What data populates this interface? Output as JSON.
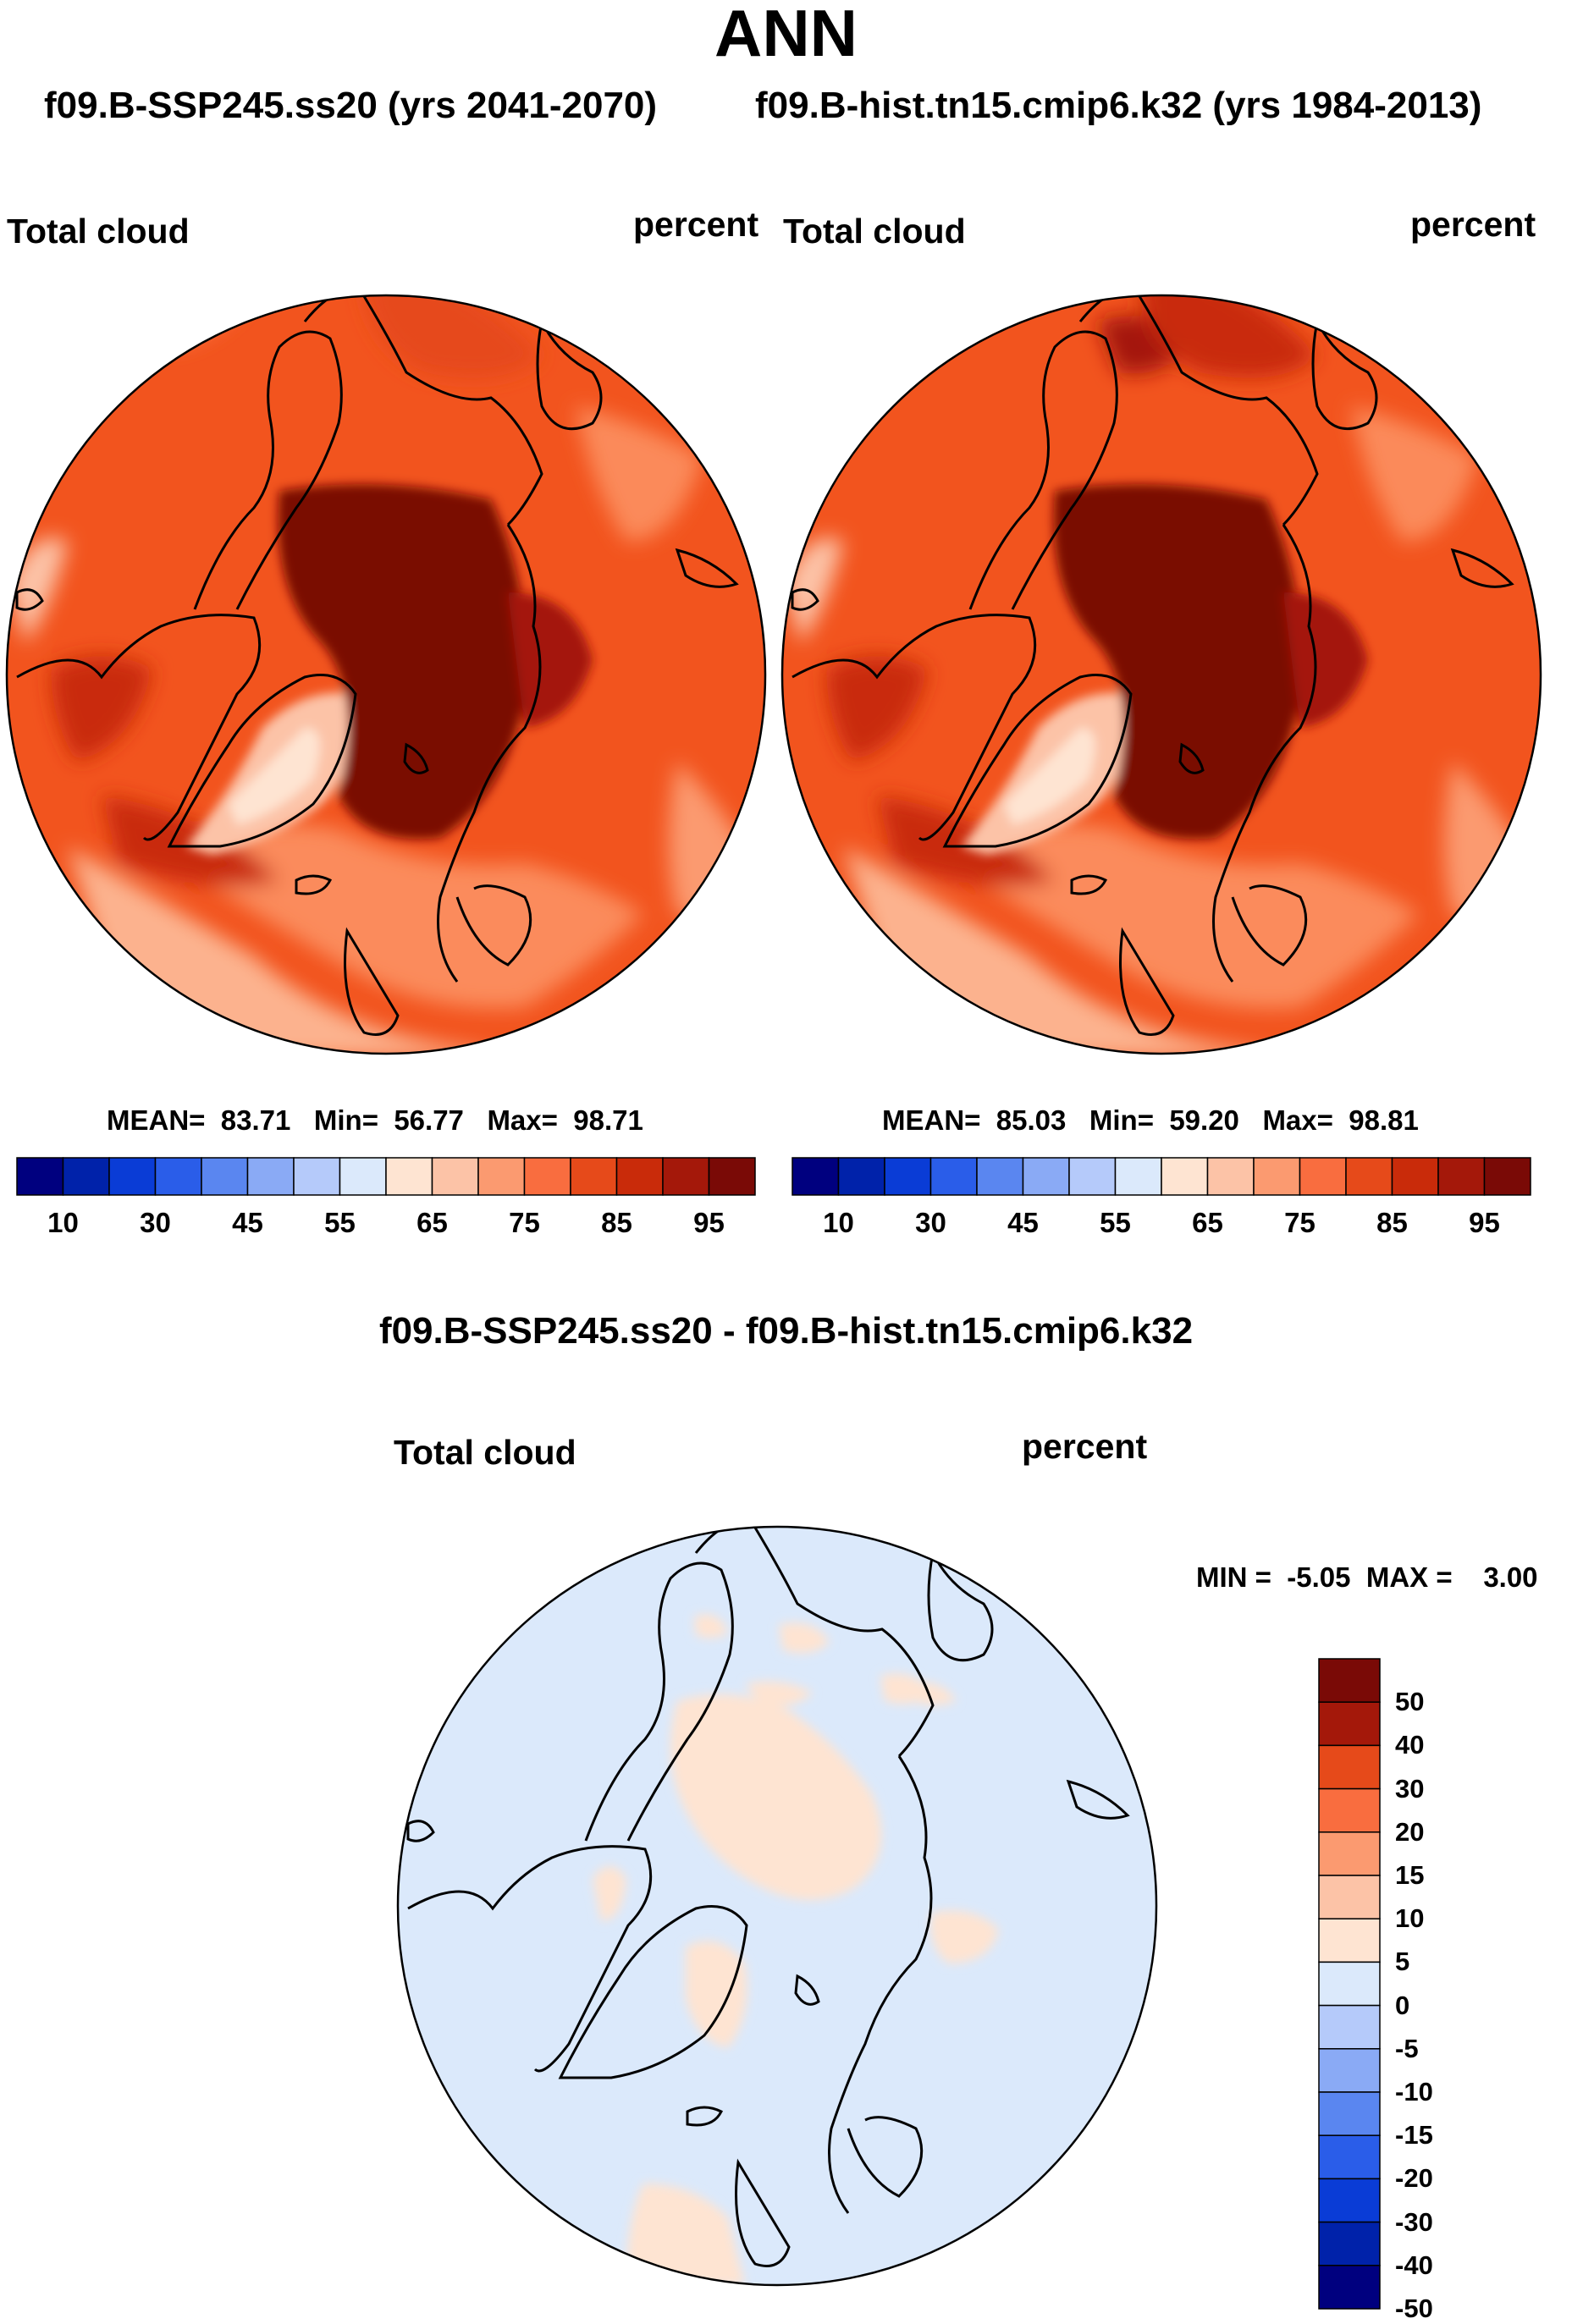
{
  "figure": {
    "title": "ANN",
    "subtitle_left": "f09.B-SSP245.ss20 (yrs 2041-2070)",
    "subtitle_right": "f09.B-hist.tn15.cmip6.k32 (yrs 1984-2013)"
  },
  "panel_left": {
    "variable": "Total cloud",
    "units": "percent",
    "stats": {
      "mean_label": "MEAN=",
      "mean": "83.71",
      "min_label": "Min=",
      "min": "56.77",
      "max_label": "Max=",
      "max": "98.71"
    }
  },
  "panel_right": {
    "variable": "Total cloud",
    "units": "percent",
    "stats": {
      "mean_label": "MEAN=",
      "mean": "85.03",
      "min_label": "Min=",
      "min": "59.20",
      "max_label": "Max=",
      "max": "98.81"
    }
  },
  "colorbar_abs": {
    "colors": [
      "#00007f",
      "#0022aa",
      "#0a3cd6",
      "#2a5de9",
      "#5a86f0",
      "#8aaaf5",
      "#b5cafa",
      "#dbe9fb",
      "#fee4d2",
      "#fcc3a7",
      "#fb9a70",
      "#f96d3f",
      "#e64a1a",
      "#c92b0a",
      "#a4180a",
      "#7a0a06"
    ],
    "tick_labels": [
      "10",
      "30",
      "45",
      "55",
      "65",
      "75",
      "85",
      "95"
    ]
  },
  "diff_panel": {
    "title": "f09.B-SSP245.ss20 - f09.B-hist.tn15.cmip6.k32",
    "variable": "Total cloud",
    "units": "percent",
    "minmax": {
      "min_label": "MIN =",
      "min": "-5.05",
      "max_label": "MAX =",
      "max": "3.00"
    }
  },
  "colorbar_diff": {
    "colors": [
      "#7a0a06",
      "#a4180a",
      "#e64a1a",
      "#f96d3f",
      "#fb9a70",
      "#fcc3a7",
      "#fee4d2",
      "#dbe9fb",
      "#b5cafa",
      "#8aaaf5",
      "#5a86f0",
      "#2a5de9",
      "#0a3cd6",
      "#0022aa",
      "#00007f"
    ],
    "tick_labels": [
      "50",
      "40",
      "30",
      "20",
      "15",
      "10",
      "5",
      "0",
      "-5",
      "-10",
      "-15",
      "-20",
      "-30",
      "-40",
      "-50"
    ]
  },
  "chart_data": [
    {
      "type": "heatmap",
      "projection": "north polar stereographic",
      "title": "Total cloud",
      "units": "percent",
      "period": "f09.B-SSP245.ss20 (yrs 2041-2070)",
      "mean": 83.71,
      "min": 56.77,
      "max": 98.71,
      "levels": [
        10,
        20,
        30,
        40,
        45,
        50,
        55,
        60,
        65,
        70,
        75,
        80,
        85,
        90,
        95
      ]
    },
    {
      "type": "heatmap",
      "projection": "north polar stereographic",
      "title": "Total cloud",
      "units": "percent",
      "period": "f09.B-hist.tn15.cmip6.k32 (yrs 1984-2013)",
      "mean": 85.03,
      "min": 59.2,
      "max": 98.81,
      "levels": [
        10,
        20,
        30,
        40,
        45,
        50,
        55,
        60,
        65,
        70,
        75,
        80,
        85,
        90,
        95
      ]
    },
    {
      "type": "heatmap",
      "projection": "north polar stereographic",
      "title": "f09.B-SSP245.ss20 - f09.B-hist.tn15.cmip6.k32",
      "units": "percent",
      "min": -5.05,
      "max": 3.0,
      "levels": [
        50,
        40,
        30,
        20,
        15,
        10,
        5,
        0,
        -5,
        -10,
        -15,
        -20,
        -30,
        -40,
        -50
      ]
    }
  ]
}
